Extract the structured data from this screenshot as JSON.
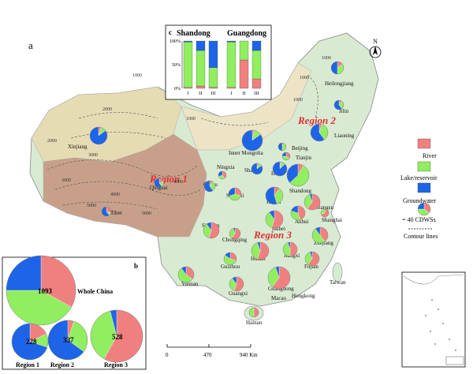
{
  "panel_label_a": "a",
  "panel_label_b": "b",
  "panel_label_c": "c",
  "north_label": "N",
  "regions": {
    "r1": "Region 1",
    "r2": "Region 2",
    "r3": "Region 3"
  },
  "provinces": [
    {
      "id": "heilongjiang",
      "name": "Heilongjiang"
    },
    {
      "id": "jilin",
      "name": "Jilin"
    },
    {
      "id": "liaoning",
      "name": "Liaoning"
    },
    {
      "id": "inner-mongolia",
      "name": "Inner Mongolia"
    },
    {
      "id": "beijing",
      "name": "Beijing"
    },
    {
      "id": "tianjin",
      "name": "Tianjin"
    },
    {
      "id": "hebei",
      "name": "Hebei"
    },
    {
      "id": "shanxi",
      "name": "Shanxi"
    },
    {
      "id": "shandong",
      "name": "Shandong"
    },
    {
      "id": "ningxia",
      "name": "Ningxia"
    },
    {
      "id": "gansu",
      "name": "Gansu"
    },
    {
      "id": "shaanxi",
      "name": "Shaanxi"
    },
    {
      "id": "henan",
      "name": "Henan"
    },
    {
      "id": "xinjiang",
      "name": "Xinjiang"
    },
    {
      "id": "qinghai",
      "name": "Qinghai"
    },
    {
      "id": "tibet",
      "name": "Tibet"
    },
    {
      "id": "sichuan",
      "name": "Sichuan"
    },
    {
      "id": "chongqing",
      "name": "Chongqing"
    },
    {
      "id": "hubei",
      "name": "Hubei"
    },
    {
      "id": "anhui",
      "name": "Anhui"
    },
    {
      "id": "jiangsu",
      "name": "Jiangsu"
    },
    {
      "id": "shanghai",
      "name": "Shanghai"
    },
    {
      "id": "zhejiang",
      "name": "Zhejiang"
    },
    {
      "id": "hunan",
      "name": "Hunan"
    },
    {
      "id": "jiangxi",
      "name": "Jiangxi"
    },
    {
      "id": "fujian",
      "name": "Fujian"
    },
    {
      "id": "taiwan",
      "name": "Taiwan"
    },
    {
      "id": "guizhou",
      "name": "Guizhou"
    },
    {
      "id": "yunnan",
      "name": "Yunnan"
    },
    {
      "id": "guangxi",
      "name": "Guangxi"
    },
    {
      "id": "guangdong",
      "name": "Guangdong"
    },
    {
      "id": "hongkong",
      "name": "Hongkong"
    },
    {
      "id": "macao",
      "name": "Macao"
    },
    {
      "id": "hainan",
      "name": "Hainan"
    }
  ],
  "contour_labels": [
    "1000",
    "2000",
    "3000",
    "4000",
    "5000",
    "1000",
    "1000",
    "1000",
    "1000",
    "2000",
    "3000",
    "4000",
    "5000"
  ],
  "legend": {
    "river": "River",
    "lake": "Lake/reservoir",
    "groundwater": "Groundwater",
    "scale_pie": "= 40 CDWSs",
    "contour": "Contour lines"
  },
  "colors": {
    "river": "#f08080",
    "lake": "#90ee60",
    "groundwater": "#1e64e6",
    "terrain_high": "#c8a08a",
    "terrain_mid": "#e6dcb4",
    "terrain_low": "#d9ead3",
    "region_label": "#e03030"
  },
  "scale_bar": {
    "ticks": [
      "0",
      "470",
      "940 Km"
    ]
  },
  "pies_b": [
    {
      "label": "Whole China",
      "value": "1093",
      "shares": {
        "river": 0.33,
        "lake": 0.42,
        "groundwater": 0.25
      }
    },
    {
      "label": "Region 1",
      "value": "228",
      "shares": {
        "river": 0.18,
        "lake": 0.12,
        "groundwater": 0.7
      }
    },
    {
      "label": "Region 2",
      "value": "337",
      "shares": {
        "river": 0.05,
        "lake": 0.3,
        "groundwater": 0.65
      }
    },
    {
      "label": "Region 3",
      "value": "528",
      "shares": {
        "river": 0.58,
        "lake": 0.38,
        "groundwater": 0.04
      }
    }
  ],
  "chart_data": {
    "type": "bar",
    "title": "",
    "groups": [
      "Shandong",
      "Guangdong"
    ],
    "categories": [
      "I",
      "II",
      "III"
    ],
    "ylim": [
      0,
      100
    ],
    "yticks": [
      "0%",
      "50%",
      "100%"
    ],
    "stack_order": [
      "river",
      "lake",
      "groundwater"
    ],
    "series": [
      {
        "name": "River",
        "values": [
          [
            2,
            5,
            2
          ],
          [
            2,
            60,
            20
          ]
        ]
      },
      {
        "name": "Lake/reservoir",
        "values": [
          [
            96,
            75,
            42
          ],
          [
            96,
            40,
            60
          ]
        ]
      },
      {
        "name": "Groundwater",
        "values": [
          [
            2,
            20,
            56
          ],
          [
            2,
            0,
            20
          ]
        ]
      }
    ]
  }
}
